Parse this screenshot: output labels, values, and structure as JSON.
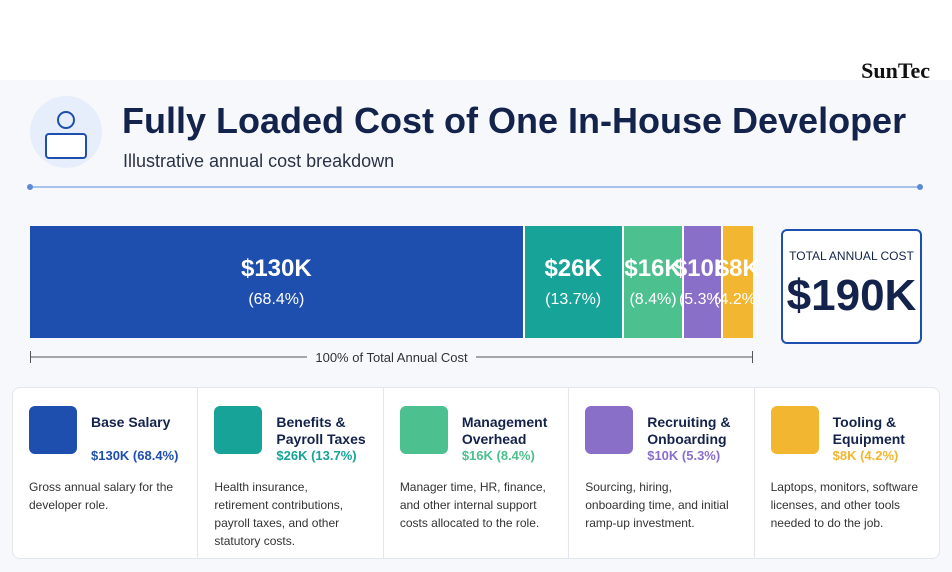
{
  "brand": "SunTec",
  "header": {
    "title": "Fully Loaded Cost of One In-House Developer",
    "subtitle": "Illustrative annual cost breakdown"
  },
  "chart_data": {
    "type": "stacked-bar",
    "series": [
      {
        "name": "Base Salary",
        "color": "#1f4fae",
        "values": [
          130
        ],
        "value_labels": [
          "$130K"
        ],
        "percent_labels": [
          "(68.4%)"
        ]
      },
      {
        "name": "Benefits & Payroll Taxes",
        "color": "#17a397",
        "values": [
          26
        ],
        "value_labels": [
          "$26K"
        ],
        "percent_labels": [
          "(13.7%)"
        ]
      },
      {
        "name": "Management Overhead",
        "color": "#4cc08f",
        "values": [
          16
        ],
        "value_labels": [
          "$16K"
        ],
        "percent_labels": [
          "(8.4%)"
        ]
      },
      {
        "name": "Recruiting & Onboarding",
        "color": "#8a6fc9",
        "values": [
          10
        ],
        "value_labels": [
          "$10K"
        ],
        "percent_labels": [
          "(5.3%)"
        ]
      },
      {
        "name": "Tooling & Equipment",
        "color": "#f2b631",
        "values": [
          8
        ],
        "value_labels": [
          "$8K"
        ],
        "percent_labels": [
          "(4.2%)"
        ]
      }
    ],
    "axis_label": "100% of Total Annual Cost",
    "total": {
      "label": "TOTAL ANNUAL COST",
      "value": 190,
      "value_label": "$190K"
    }
  },
  "cards": [
    {
      "amount": "$130K (68.4%)",
      "description": "Gross annual salary for the developer role."
    },
    {
      "amount": "$26K (13.7%)",
      "description": "Health insurance, retirement contributions, payroll taxes, and other statutory costs."
    },
    {
      "amount": "$16K (8.4%)",
      "description": "Manager time, HR, finance, and other internal support costs allocated to the role."
    },
    {
      "amount": "$10K (5.3%)",
      "description": "Sourcing, hiring, onboarding time, and initial ramp-up investment."
    },
    {
      "amount": "$8K (4.2%)",
      "description": "Laptops, monitors, software licenses, and other tools needed to do the job."
    }
  ]
}
